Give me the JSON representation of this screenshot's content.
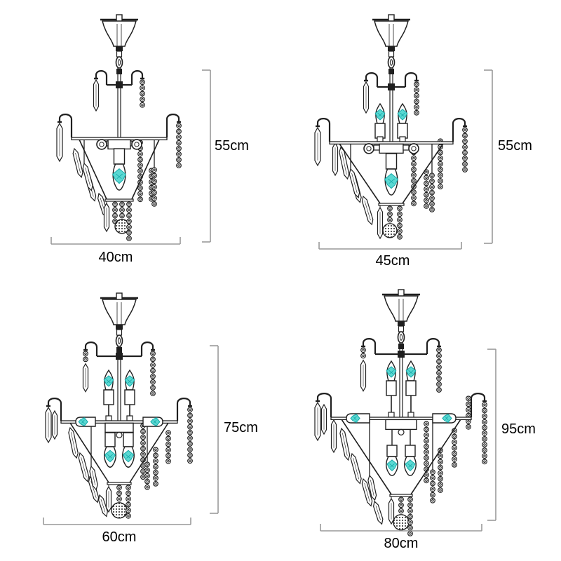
{
  "diagrams": [
    {
      "width_label": "40cm",
      "height_label": "55cm",
      "lights": {
        "up": 0,
        "side": 0,
        "down": 1
      }
    },
    {
      "width_label": "45cm",
      "height_label": "55cm",
      "lights": {
        "up": 2,
        "side": 0,
        "down": 1
      }
    },
    {
      "width_label": "60cm",
      "height_label": "75cm",
      "lights": {
        "up": 2,
        "side": 2,
        "down": 2
      }
    },
    {
      "width_label": "80cm",
      "height_label": "95cm",
      "lights": {
        "up": 2,
        "side": 2,
        "down": 2
      }
    }
  ],
  "colors": {
    "line": "#1f1f1f",
    "dimension": "#999999",
    "label": "#000000",
    "bulb": "#5ad8d2",
    "bulb_edge": "#14a8a8"
  }
}
